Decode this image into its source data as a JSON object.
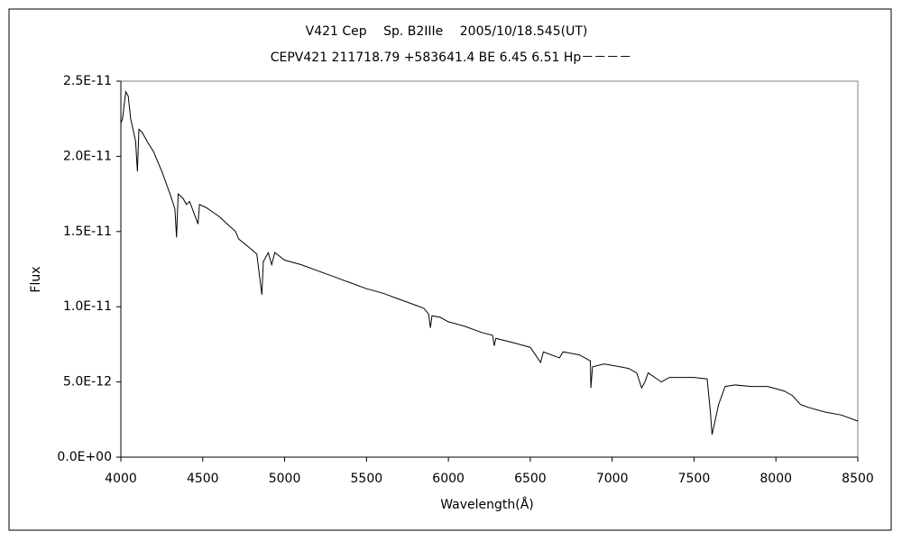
{
  "chart_data": {
    "type": "line",
    "title": "V421 Cep　 Sp. B2IIIe　 2005/10/18.545(UT)",
    "subtitle": "CEPV421 211718.79 +583641.4 BE 6.45 6.51 Hp－－－－",
    "x_label": "Wavelength(Å)",
    "y_label": "Flux",
    "xlim": [
      4000,
      8500
    ],
    "xticks": [
      4000,
      4500,
      5000,
      5500,
      6000,
      6500,
      7000,
      7500,
      8000,
      8500
    ],
    "ylim": [
      0,
      2.5e-11
    ],
    "yticks": [
      {
        "value": 0,
        "label": "0.0E+00"
      },
      {
        "value": 5e-12,
        "label": "5.0E-12"
      },
      {
        "value": 1e-11,
        "label": "1.0E-11"
      },
      {
        "value": 1.5e-11,
        "label": "1.5E-11"
      },
      {
        "value": 2e-11,
        "label": "2.0E-11"
      },
      {
        "value": 2.5e-11,
        "label": "2.5E-11"
      }
    ],
    "grid": false,
    "series": [
      {
        "name": "Flux",
        "color": "#000000",
        "x": [
          4000,
          4010,
          4030,
          4045,
          4060,
          4090,
          4101,
          4110,
          4130,
          4160,
          4200,
          4250,
          4300,
          4330,
          4340,
          4350,
          4380,
          4400,
          4420,
          4471,
          4480,
          4520,
          4600,
          4700,
          4720,
          4800,
          4830,
          4861,
          4870,
          4900,
          4921,
          4940,
          5000,
          5100,
          5200,
          5300,
          5400,
          5500,
          5600,
          5700,
          5800,
          5850,
          5880,
          5890,
          5900,
          5950,
          6000,
          6100,
          6200,
          6270,
          6280,
          6290,
          6400,
          6500,
          6563,
          6580,
          6678,
          6700,
          6800,
          6867,
          6870,
          6880,
          6950,
          7050,
          7100,
          7150,
          7180,
          7200,
          7220,
          7300,
          7350,
          7500,
          7580,
          7600,
          7610,
          7630,
          7650,
          7690,
          7750,
          7850,
          7950,
          8050,
          8100,
          8150,
          8200,
          8300,
          8400,
          8500
        ],
        "values": [
          2.22e-11,
          2.25e-11,
          2.43e-11,
          2.4e-11,
          2.25e-11,
          2.1e-11,
          1.9e-11,
          2.18e-11,
          2.16e-11,
          2.1e-11,
          2.03e-11,
          1.9e-11,
          1.75e-11,
          1.65e-11,
          1.46e-11,
          1.75e-11,
          1.72e-11,
          1.68e-11,
          1.7e-11,
          1.55e-11,
          1.68e-11,
          1.66e-11,
          1.6e-11,
          1.5e-11,
          1.45e-11,
          1.38e-11,
          1.35e-11,
          1.08e-11,
          1.3e-11,
          1.36e-11,
          1.28e-11,
          1.36e-11,
          1.31e-11,
          1.28e-11,
          1.24e-11,
          1.2e-11,
          1.16e-11,
          1.12e-11,
          1.09e-11,
          1.05e-11,
          1.01e-11,
          9.9e-12,
          9.5e-12,
          8.6e-12,
          9.4e-12,
          9.3e-12,
          9e-12,
          8.7e-12,
          8.3e-12,
          8.1e-12,
          7.4e-12,
          7.9e-12,
          7.6e-12,
          7.3e-12,
          6.3e-12,
          7e-12,
          6.6e-12,
          7e-12,
          6.8e-12,
          6.4e-12,
          4.6e-12,
          6e-12,
          6.2e-12,
          6e-12,
          5.9e-12,
          5.6e-12,
          4.6e-12,
          5e-12,
          5.6e-12,
          5e-12,
          5.3e-12,
          5.3e-12,
          5.2e-12,
          3e-12,
          1.5e-12,
          2.5e-12,
          3.5e-12,
          4.7e-12,
          4.8e-12,
          4.7e-12,
          4.7e-12,
          4.4e-12,
          4.1e-12,
          3.5e-12,
          3.3e-12,
          3e-12,
          2.8e-12,
          2.4e-12
        ]
      }
    ]
  }
}
